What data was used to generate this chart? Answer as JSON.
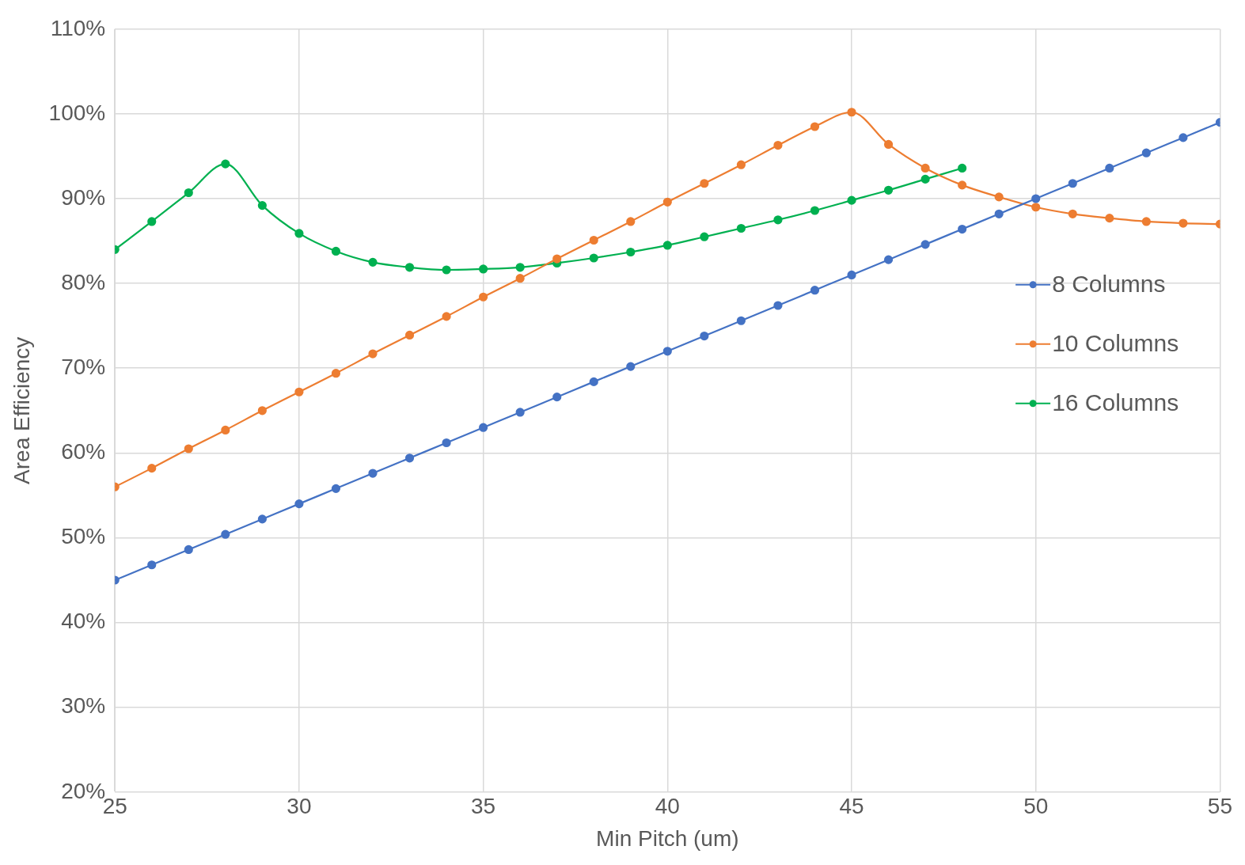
{
  "chart_data": {
    "type": "line",
    "xlabel": "Min Pitch (um)",
    "ylabel": "Area Efficiency",
    "x": [
      25,
      26,
      27,
      28,
      29,
      30,
      31,
      32,
      33,
      34,
      35,
      36,
      37,
      38,
      39,
      40,
      41,
      42,
      43,
      44,
      45,
      46,
      47,
      48,
      49,
      50,
      51,
      52,
      53,
      54,
      55
    ],
    "series": [
      {
        "name": "8 Columns",
        "color": "#4472c4",
        "values": [
          45.0,
          46.8,
          48.6,
          50.4,
          52.2,
          54.0,
          55.8,
          57.6,
          59.4,
          61.2,
          63.0,
          64.8,
          66.6,
          68.4,
          70.2,
          72.0,
          73.8,
          75.6,
          77.4,
          79.2,
          81.0,
          82.8,
          84.6,
          86.4,
          88.2,
          90.0,
          91.8,
          93.6,
          95.4,
          97.2,
          99.0
        ]
      },
      {
        "name": "10 Columns",
        "color": "#ed7d31",
        "values": [
          56.0,
          58.2,
          60.5,
          62.7,
          65.0,
          67.2,
          69.4,
          71.7,
          73.9,
          76.1,
          78.4,
          80.6,
          82.9,
          85.1,
          87.3,
          89.6,
          91.8,
          94.0,
          96.3,
          98.5,
          100.2,
          96.4,
          93.6,
          91.6,
          90.2,
          89.0,
          88.2,
          87.7,
          87.3,
          87.1,
          87.0
        ]
      },
      {
        "name": "16 Columns",
        "color": "#00b050",
        "values": [
          84.0,
          87.3,
          90.7,
          94.1,
          89.2,
          85.9,
          83.8,
          82.5,
          81.9,
          81.6,
          81.7,
          81.9,
          82.4,
          83.0,
          83.7,
          84.5,
          85.5,
          86.5,
          87.5,
          88.6,
          89.8,
          91.0,
          92.3,
          93.6,
          null,
          null,
          null,
          null,
          null,
          null,
          null
        ]
      }
    ],
    "xlim": [
      25,
      55
    ],
    "xticks": [
      25,
      30,
      35,
      40,
      45,
      50,
      55
    ],
    "ylim": [
      20,
      110
    ],
    "yticks": [
      {
        "value": 20,
        "label": "20%"
      },
      {
        "value": 30,
        "label": "30%"
      },
      {
        "value": 40,
        "label": "40%"
      },
      {
        "value": 50,
        "label": "50%"
      },
      {
        "value": 60,
        "label": "60%"
      },
      {
        "value": 70,
        "label": "70%"
      },
      {
        "value": 80,
        "label": "80%"
      },
      {
        "value": 90,
        "label": "90%"
      },
      {
        "value": 100,
        "label": "100%"
      },
      {
        "value": 110,
        "label": "110%"
      }
    ],
    "grid": true,
    "legend": "right",
    "marker": "circle",
    "line_style": "solid"
  }
}
